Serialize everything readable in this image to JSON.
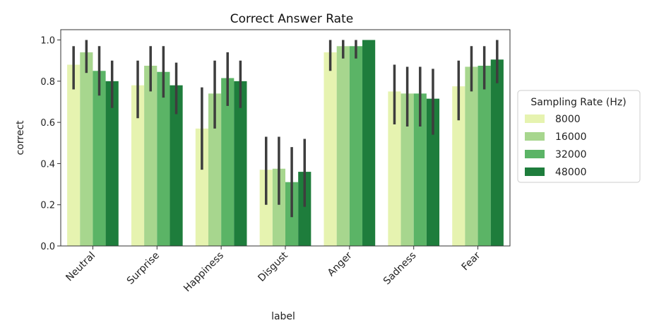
{
  "chart_data": {
    "type": "bar",
    "title": "Correct Answer Rate",
    "xlabel": "label",
    "ylabel": "correct",
    "ylim": [
      0,
      1.05
    ],
    "yticks": [
      "0.0",
      "0.2",
      "0.4",
      "0.6",
      "0.8",
      "1.0"
    ],
    "grid": false,
    "categories": [
      "Neutral",
      "Surprise",
      "Happiness",
      "Disgust",
      "Anger",
      "Sadness",
      "Fear"
    ],
    "series": [
      {
        "name": "8000",
        "color": "#e6f3b0",
        "values": [
          0.88,
          0.78,
          0.57,
          0.37,
          0.94,
          0.75,
          0.775
        ],
        "error_low": [
          0.76,
          0.62,
          0.37,
          0.2,
          0.85,
          0.59,
          0.61
        ],
        "error_high": [
          0.97,
          0.9,
          0.77,
          0.53,
          1.0,
          0.88,
          0.9
        ]
      },
      {
        "name": "16000",
        "color": "#a7d68e",
        "values": [
          0.94,
          0.875,
          0.74,
          0.375,
          0.97,
          0.74,
          0.87
        ],
        "error_low": [
          0.84,
          0.75,
          0.57,
          0.2,
          0.91,
          0.58,
          0.75
        ],
        "error_high": [
          1.0,
          0.97,
          0.9,
          0.53,
          1.0,
          0.87,
          0.97
        ]
      },
      {
        "name": "32000",
        "color": "#5bb466",
        "values": [
          0.85,
          0.845,
          0.815,
          0.31,
          0.97,
          0.74,
          0.875
        ],
        "error_low": [
          0.73,
          0.72,
          0.68,
          0.14,
          0.91,
          0.58,
          0.76
        ],
        "error_high": [
          0.97,
          0.97,
          0.94,
          0.48,
          1.0,
          0.87,
          0.97
        ]
      },
      {
        "name": "48000",
        "color": "#1e7d3c",
        "values": [
          0.8,
          0.78,
          0.8,
          0.36,
          1.0,
          0.715,
          0.905
        ],
        "error_low": [
          0.67,
          0.64,
          0.67,
          0.19,
          1.0,
          0.54,
          0.79
        ],
        "error_high": [
          0.9,
          0.89,
          0.9,
          0.52,
          1.0,
          0.86,
          1.0
        ]
      }
    ],
    "legend": {
      "title": "Sampling Rate (Hz)",
      "position": "outside-right",
      "entries": [
        "8000",
        "16000",
        "32000",
        "48000"
      ]
    }
  }
}
